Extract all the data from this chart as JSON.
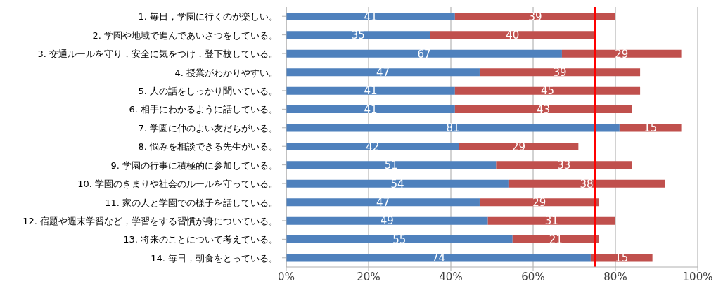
{
  "chart_data": {
    "type": "bar",
    "orientation": "horizontal",
    "stacked": true,
    "data_labels": true,
    "grid": "x",
    "categories": [
      "1. 毎日，学園に行くのが楽しい。",
      "2. 学園や地域で進んであいさつをしている。",
      "3. 交通ルールを守り，安全に気をつけ，登下校している。",
      "4. 授業がわかりやすい。",
      "5. 人の話をしっかり聞いている。",
      "6. 相手にわかるように話している。",
      "7. 学園に仲のよい友だちがいる。",
      "8. 悩みを相談できる先生がいる。",
      "9. 学園の行事に積極的に参加している。",
      "10. 学園のきまりや社会のルールを守っている。",
      "11. 家の人と学園での様子を話している。",
      "12. 宿題や週末学習など，学習をする習慣が身についている。",
      "13. 将来のことについて考えている。",
      "14. 毎日，朝食をとっている。"
    ],
    "series": [
      {
        "color": "#4f81bd",
        "values": [
          41,
          35,
          67,
          47,
          41,
          41,
          81,
          42,
          51,
          54,
          47,
          49,
          55,
          74
        ]
      },
      {
        "color": "#c0504d",
        "values": [
          39,
          40,
          29,
          39,
          45,
          43,
          15,
          29,
          33,
          38,
          29,
          31,
          21,
          15
        ]
      }
    ],
    "xlim": [
      0,
      100
    ],
    "xticks": [
      {
        "value": 0,
        "label": "0%"
      },
      {
        "value": 20,
        "label": "20%"
      },
      {
        "value": 40,
        "label": "40%"
      },
      {
        "value": 60,
        "label": "60%"
      },
      {
        "value": 80,
        "label": "80%"
      },
      {
        "value": 100,
        "label": "100%"
      }
    ],
    "ref_lines": [
      {
        "axis": "x",
        "value": 75,
        "color": "#ff0000"
      }
    ]
  }
}
